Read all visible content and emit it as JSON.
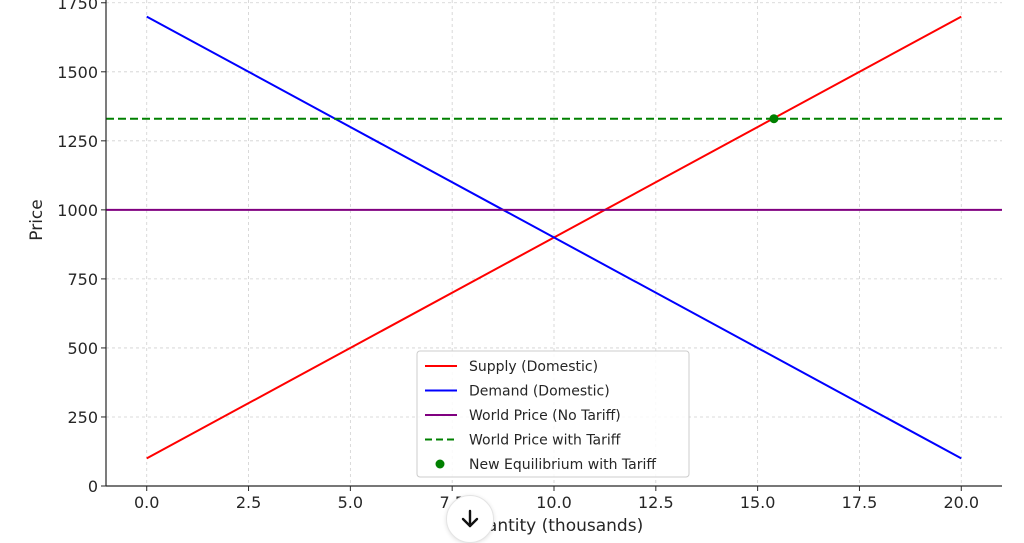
{
  "chart_data": {
    "type": "line",
    "title": "",
    "xlabel": "Quantity (thousands)",
    "ylabel": "Price",
    "xlim": [
      -1,
      21
    ],
    "ylim": [
      0,
      1760
    ],
    "xticks": [
      0.0,
      2.5,
      5.0,
      7.5,
      10.0,
      12.5,
      15.0,
      17.5,
      20.0
    ],
    "xtick_labels": [
      "0.0",
      "2.5",
      "5.0",
      "7.5",
      "10.0",
      "12.5",
      "15.0",
      "17.5",
      "20.0"
    ],
    "yticks": [
      0,
      250,
      500,
      750,
      1000,
      1250,
      1500,
      1750
    ],
    "ytick_labels": [
      "0",
      "250",
      "500",
      "750",
      "1000",
      "1250",
      "1500",
      "1750"
    ],
    "grid": true,
    "legend_position": "lower-center",
    "series": [
      {
        "name": "Supply (Domestic)",
        "kind": "line",
        "style": "solid",
        "color": "#ff0000",
        "x": [
          0,
          20
        ],
        "y": [
          100,
          1700
        ]
      },
      {
        "name": "Demand (Domestic)",
        "kind": "line",
        "style": "solid",
        "color": "#0000ff",
        "x": [
          0,
          20
        ],
        "y": [
          1700,
          100
        ]
      },
      {
        "name": "World Price (No Tariff)",
        "kind": "hline",
        "style": "solid",
        "color": "#800080",
        "y": 1000
      },
      {
        "name": "World Price with Tariff",
        "kind": "hline",
        "style": "dashed",
        "color": "#008000",
        "y": 1330
      },
      {
        "name": "New Equilibrium with Tariff",
        "kind": "point",
        "color": "#008000",
        "x": [
          15.4
        ],
        "y": [
          1330
        ]
      }
    ]
  },
  "ui": {
    "scroll_down_icon": "arrow-down-icon"
  }
}
